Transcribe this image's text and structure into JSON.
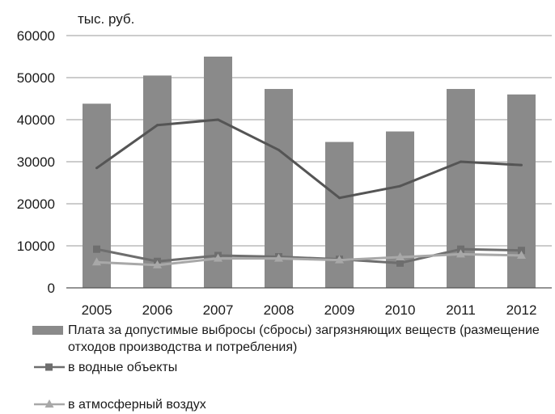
{
  "chart_data": {
    "type": "bar",
    "unit_label": "тыс. руб.",
    "categories": [
      "2005",
      "2006",
      "2007",
      "2008",
      "2009",
      "2010",
      "2011",
      "2012"
    ],
    "ylim": [
      0,
      60000
    ],
    "yticks": [
      "0",
      "10000",
      "20000",
      "30000",
      "40000",
      "50000",
      "60000"
    ],
    "ytick_values": [
      0,
      10000,
      20000,
      30000,
      40000,
      50000,
      60000
    ],
    "grid": true,
    "legend_position": "bottom",
    "series": [
      {
        "name": "Плата за допустимые выбросы (сбросы) загрязняющих веществ (размещение отходов производства и потребления)",
        "kind": "bar",
        "color": "#8a8a8a",
        "values": [
          43800,
          50500,
          55000,
          47300,
          34700,
          37200,
          47300,
          46000
        ]
      },
      {
        "name": "",
        "kind": "line",
        "color": "#555555",
        "marker": "none",
        "values": [
          28500,
          38700,
          40000,
          32800,
          21400,
          24200,
          30000,
          29200
        ]
      },
      {
        "name": "в водные объекты",
        "kind": "line",
        "color": "#6e6e6e",
        "marker": "square",
        "values": [
          9200,
          6300,
          7700,
          7400,
          6800,
          5900,
          9200,
          8900
        ]
      },
      {
        "name": "в атмосферный воздух",
        "kind": "line",
        "color": "#a8a8a8",
        "marker": "triangle",
        "values": [
          6100,
          5400,
          7000,
          7000,
          6600,
          7300,
          8000,
          7700
        ]
      }
    ]
  }
}
